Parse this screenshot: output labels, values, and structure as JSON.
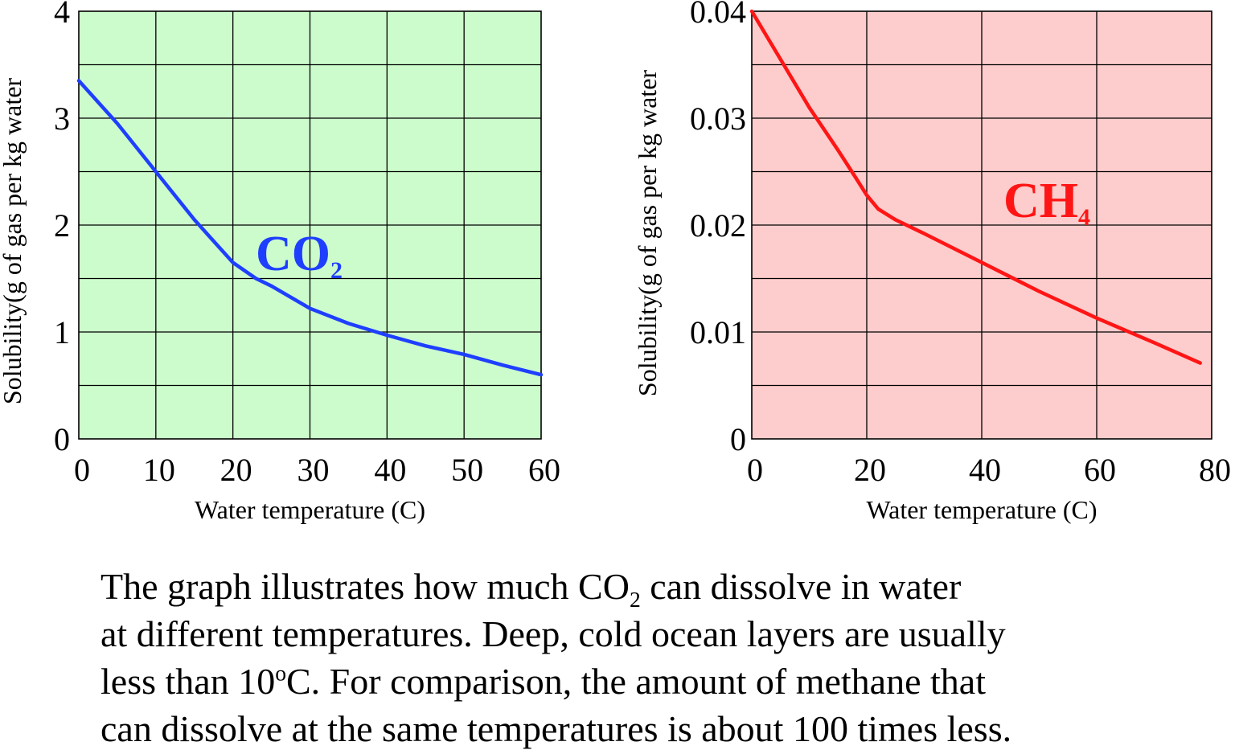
{
  "chart_data": [
    {
      "type": "line",
      "xlabel": "Water temperature (C)",
      "ylabel": "Solubility(g of gas per kg water",
      "xlim": [
        0,
        60
      ],
      "ylim": [
        0,
        4
      ],
      "x_ticks": [
        "0",
        "10",
        "20",
        "30",
        "40",
        "50",
        "60"
      ],
      "y_ticks": [
        "0",
        "1",
        "2",
        "3",
        "4"
      ],
      "grid": true,
      "background": "#ccfccc",
      "color": "#1f3fff",
      "series": [
        {
          "name_main": "CO",
          "name_sub": "2",
          "x": [
            0,
            5,
            10,
            15,
            20,
            23,
            25,
            30,
            35,
            40,
            45,
            50,
            55,
            60
          ],
          "y": [
            3.35,
            2.95,
            2.5,
            2.05,
            1.65,
            1.5,
            1.43,
            1.22,
            1.08,
            0.97,
            0.87,
            0.79,
            0.69,
            0.6
          ]
        }
      ]
    },
    {
      "type": "line",
      "xlabel": "Water temperature (C)",
      "ylabel": "Solubility(g of gas per kg water",
      "xlim": [
        0,
        80
      ],
      "ylim": [
        0,
        0.04
      ],
      "x_ticks": [
        "0",
        "20",
        "40",
        "60",
        "80"
      ],
      "y_ticks": [
        "0",
        "0.01",
        "0.02",
        "0.03",
        "0.04"
      ],
      "grid": true,
      "background": "#fdcccc",
      "color": "#ff1515",
      "series": [
        {
          "name_main": "CH",
          "name_sub": "4",
          "x": [
            0,
            5,
            10,
            15,
            18,
            20,
            22,
            25,
            30,
            40,
            50,
            60,
            70,
            78
          ],
          "y": [
            0.04,
            0.0355,
            0.031,
            0.027,
            0.0245,
            0.0228,
            0.0215,
            0.0205,
            0.0192,
            0.0165,
            0.0138,
            0.0113,
            0.009,
            0.0071
          ]
        }
      ]
    }
  ],
  "caption": {
    "l1_a": "The graph illustrates how much CO",
    "l1_sub": "2",
    "l1_b": " can dissolve in water",
    "l2": "at different temperatures.  Deep, cold ocean layers are usually",
    "l3_a": "less than 10",
    "l3_sup": "o",
    "l3_b": "C.  For comparison, the amount of methane that",
    "l4": "can dissolve at the same temperatures is about 100 times less."
  }
}
